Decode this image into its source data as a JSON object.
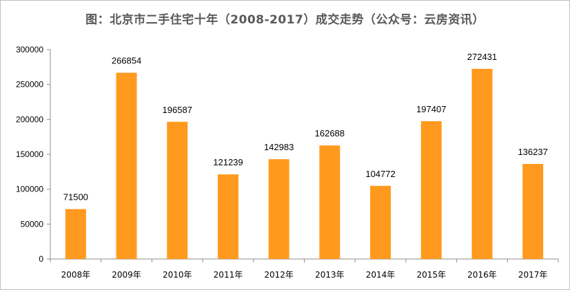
{
  "chart_data": {
    "type": "bar",
    "title": "图：北京市二手住宅十年（2008-2017）成交走势（公众号：云房资讯）",
    "xlabel": "",
    "ylabel": "",
    "categories": [
      "2008年",
      "2009年",
      "2010年",
      "2011年",
      "2012年",
      "2013年",
      "2014年",
      "2015年",
      "2016年",
      "2017年"
    ],
    "values": [
      71500,
      266854,
      196587,
      121239,
      142983,
      162688,
      104772,
      197407,
      272431,
      136237
    ],
    "ylim": [
      0,
      300000
    ],
    "yticks": [
      0,
      50000,
      100000,
      150000,
      200000,
      250000,
      300000
    ],
    "grid": false,
    "legend": "none",
    "bar_color": "#FF9A1F",
    "data_labels": true
  }
}
